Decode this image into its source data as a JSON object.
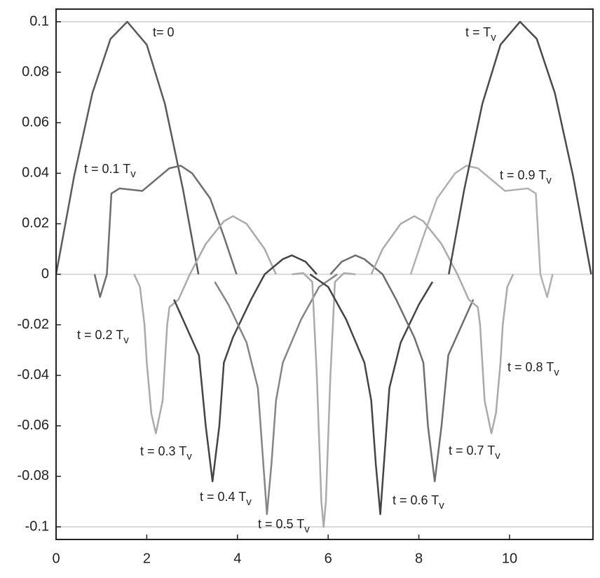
{
  "chart_data": {
    "type": "line",
    "xlim": [
      0,
      11.84
    ],
    "ylim": [
      -0.105,
      0.105
    ],
    "xticks": [
      0,
      2,
      4,
      6,
      8,
      10
    ],
    "yticks": [
      0.1,
      0.08,
      0.06,
      0.04,
      0.02,
      0,
      -0.02,
      -0.04,
      -0.06,
      -0.08,
      -0.1
    ],
    "reference_lines": [
      0.1,
      0,
      -0.1
    ],
    "series": [
      {
        "color": "#5a5a5a",
        "x": [
          0,
          0.4,
          0.8,
          1.2,
          1.57,
          2.0,
          2.4,
          2.8,
          3.14
        ],
        "values": [
          0,
          0.039,
          0.0717,
          0.0932,
          0.1,
          0.0909,
          0.0675,
          0.0335,
          0
        ]
      },
      {
        "color": "#6e6e6e",
        "x": [
          0.85,
          0.97,
          1.12,
          1.22,
          1.4,
          1.9,
          2.1,
          2.5,
          2.75,
          3.0,
          3.4,
          3.7,
          3.98
        ],
        "values": [
          0,
          -0.009,
          0,
          0.032,
          0.034,
          0.033,
          0.036,
          0.042,
          0.043,
          0.04,
          0.03,
          0.015,
          0
        ]
      },
      {
        "color": "#aaaaaa",
        "x": [
          1.72,
          1.85,
          1.95,
          2.0,
          2.1,
          2.2,
          2.35,
          2.45,
          2.5,
          2.7,
          2.95,
          3.3,
          3.7,
          3.9,
          4.2,
          4.6,
          4.85
        ],
        "values": [
          0,
          -0.005,
          -0.02,
          -0.035,
          -0.055,
          -0.063,
          -0.05,
          -0.02,
          -0.013,
          -0.01,
          0,
          0.012,
          0.021,
          0.023,
          0.02,
          0.01,
          0
        ]
      },
      {
        "color": "#444444",
        "x": [
          2.6,
          2.9,
          3.15,
          3.3,
          3.45,
          3.6,
          3.7,
          3.9,
          4.3,
          4.6,
          5.0,
          5.2,
          5.5,
          5.75
        ],
        "values": [
          -0.01,
          -0.022,
          -0.032,
          -0.06,
          -0.082,
          -0.06,
          -0.035,
          -0.025,
          -0.01,
          0,
          0.006,
          0.0075,
          0.005,
          0
        ]
      },
      {
        "color": "#858585",
        "x": [
          3.5,
          3.8,
          4.2,
          4.45,
          4.55,
          4.65,
          4.75,
          4.85,
          5.0,
          5.4,
          5.8,
          6.2
        ],
        "values": [
          -0.003,
          -0.012,
          -0.027,
          -0.045,
          -0.07,
          -0.095,
          -0.075,
          -0.05,
          -0.035,
          -0.018,
          -0.005,
          0
        ]
      },
      {
        "color": "#aaaaaa",
        "x": [
          5.2,
          5.45,
          5.65,
          5.75,
          5.85,
          5.9,
          5.95,
          6.05,
          6.15,
          6.35,
          6.6
        ],
        "values": [
          0,
          0.0005,
          -0.003,
          -0.04,
          -0.09,
          -0.1,
          -0.09,
          -0.04,
          -0.003,
          0.0005,
          0
        ]
      },
      {
        "color": "#444444",
        "x": [
          5.6,
          6.0,
          6.4,
          6.8,
          6.95,
          7.05,
          7.15,
          7.25,
          7.35,
          7.6,
          8.0,
          8.3
        ],
        "values": [
          0,
          -0.005,
          -0.018,
          -0.035,
          -0.05,
          -0.075,
          -0.095,
          -0.07,
          -0.045,
          -0.027,
          -0.012,
          -0.003
        ]
      },
      {
        "color": "#6e6e6e",
        "x": [
          6.05,
          6.3,
          6.6,
          6.8,
          7.2,
          7.5,
          7.9,
          8.1,
          8.2,
          8.35,
          8.5,
          8.65,
          8.9,
          9.2
        ],
        "values": [
          0,
          0.005,
          0.0075,
          0.006,
          0,
          -0.01,
          -0.025,
          -0.035,
          -0.06,
          -0.082,
          -0.06,
          -0.032,
          -0.022,
          -0.01
        ]
      },
      {
        "color": "#aaaaaa",
        "x": [
          6.95,
          7.2,
          7.6,
          7.9,
          8.1,
          8.5,
          8.85,
          9.1,
          9.3,
          9.35,
          9.45,
          9.6,
          9.7,
          9.8,
          9.85,
          9.95,
          10.08
        ],
        "values": [
          0,
          0.01,
          0.02,
          0.023,
          0.021,
          0.012,
          0,
          -0.01,
          -0.013,
          -0.02,
          -0.05,
          -0.063,
          -0.055,
          -0.035,
          -0.02,
          -0.005,
          0
        ]
      },
      {
        "color": "#b0b0b0",
        "x": [
          7.82,
          8.1,
          8.4,
          8.8,
          9.05,
          9.3,
          9.7,
          9.9,
          10.4,
          10.58,
          10.68,
          10.83,
          10.95
        ],
        "values": [
          0,
          0.015,
          0.03,
          0.04,
          0.043,
          0.042,
          0.036,
          0.033,
          0.034,
          0.032,
          0,
          -0.009,
          0
        ]
      },
      {
        "color": "#4a4a4a",
        "x": [
          8.66,
          9.0,
          9.4,
          9.8,
          10.23,
          10.6,
          11.0,
          11.4,
          11.8
        ],
        "values": [
          0,
          0.0335,
          0.0675,
          0.0909,
          0.1,
          0.0932,
          0.0717,
          0.039,
          0
        ]
      }
    ],
    "annotations": [
      {
        "text": "t= 0"
      },
      {
        "text": "t = 0.1 T",
        "sub": "v"
      },
      {
        "text": "t = 0.2 T",
        "sub": "v"
      },
      {
        "text": "t = 0.3 T",
        "sub": "v"
      },
      {
        "text": "t = 0.4 T",
        "sub": "v"
      },
      {
        "text": "t = 0.5 T",
        "sub": "v"
      },
      {
        "text": "t = 0.6 T",
        "sub": "v"
      },
      {
        "text": "t = 0.7 T",
        "sub": "v"
      },
      {
        "text": "t = 0.8 T",
        "sub": "v"
      },
      {
        "text": "t = 0.9 T",
        "sub": "v"
      },
      {
        "text": "t = T",
        "sub": "v"
      }
    ]
  }
}
